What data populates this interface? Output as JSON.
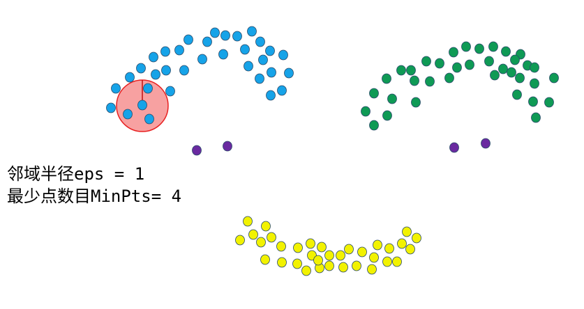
{
  "labels": {
    "eps": "邻域半径eps = 1",
    "minpts": "最少点数目MinPts= 4"
  },
  "colors": {
    "cluster_left": "#16a3e8",
    "cluster_right": "#0f9a55",
    "cluster_bottom": "#f2f200",
    "noise": "#6a2aa0",
    "eps_circle_fill": "#f7a1a1",
    "eps_circle_stroke": "#e82020",
    "point_stroke": "#2a4a6a"
  }
}
